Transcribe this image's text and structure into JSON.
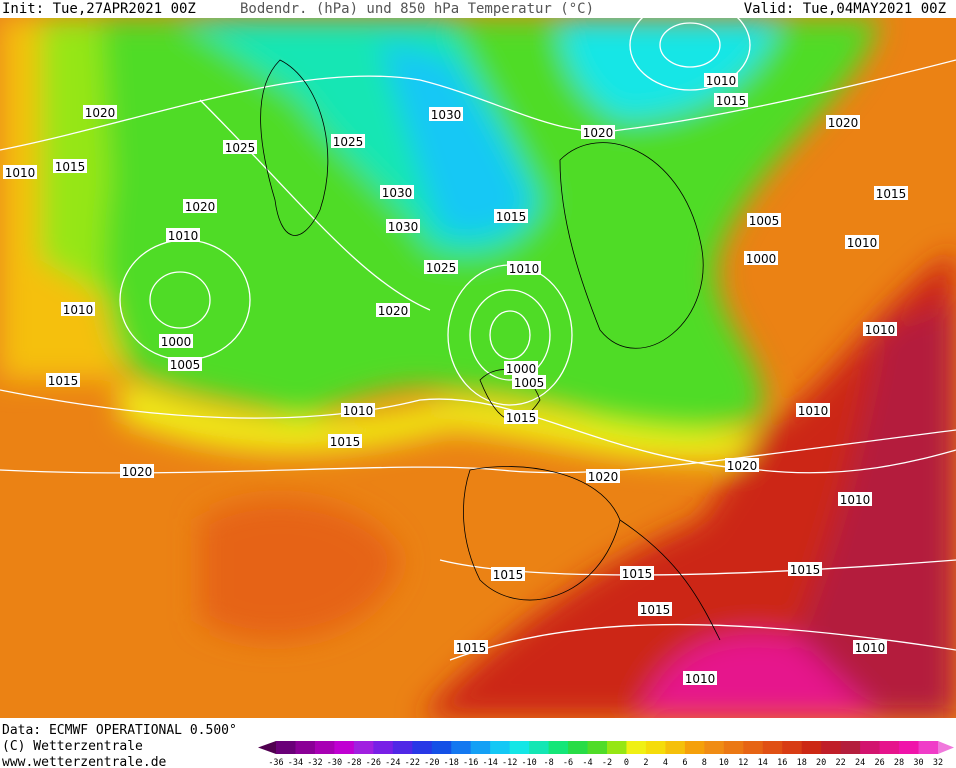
{
  "header": {
    "init": "Init: Tue,27APR2021 00Z",
    "title": "Bodendr. (hPa) und 850 hPa Temperatur (°C)",
    "valid": "Valid: Tue,04MAY2021 00Z"
  },
  "footer": {
    "source": "Data: ECMWF OPERATIONAL 0.500°",
    "copyright": "(C) Wetterzentrale",
    "url": "www.wetterzentrale.de"
  },
  "isobar_labels": [
    "1020",
    "1015",
    "1010",
    "1025",
    "1020",
    "1010",
    "1010",
    "1000",
    "1005",
    "1015",
    "1025",
    "1030",
    "1030",
    "1030",
    "1025",
    "1015",
    "1010",
    "1020",
    "1020",
    "1010",
    "1015",
    "1020",
    "1015",
    "1005",
    "1010",
    "1000",
    "1010",
    "1010",
    "1000",
    "1005",
    "1015",
    "1010",
    "1015",
    "1020",
    "1020",
    "1020",
    "1010",
    "1015",
    "1015",
    "1015",
    "1015",
    "1015",
    "1010",
    "1010"
  ],
  "colorbar": {
    "labels": [
      "-36",
      "-34",
      "-32",
      "-30",
      "-28",
      "-26",
      "-24",
      "-22",
      "-20",
      "-18",
      "-16",
      "-14",
      "-12",
      "-10",
      "-8",
      "-6",
      "-4",
      "-2",
      "0",
      "2",
      "4",
      "6",
      "8",
      "10",
      "12",
      "14",
      "16",
      "18",
      "20",
      "22",
      "24",
      "26",
      "28",
      "30",
      "32"
    ],
    "colors": [
      "#500050",
      "#6a0078",
      "#8a0096",
      "#a800b4",
      "#c000d2",
      "#a020e0",
      "#7820e6",
      "#5028e6",
      "#2838e6",
      "#1450e6",
      "#1478f0",
      "#14a0f5",
      "#14c8f5",
      "#14e6e6",
      "#14e6b4",
      "#14e678",
      "#28dc46",
      "#50dc28",
      "#96e614",
      "#f0f014",
      "#f5dc0a",
      "#f5c00a",
      "#f5a00a",
      "#f08c14",
      "#eb7814",
      "#e66414",
      "#e05014",
      "#d83c14",
      "#cc2814",
      "#c01e28",
      "#b41e3c",
      "#d2146e",
      "#e6148c",
      "#f014aa",
      "#f03cc8",
      "#f078dc"
    ]
  }
}
